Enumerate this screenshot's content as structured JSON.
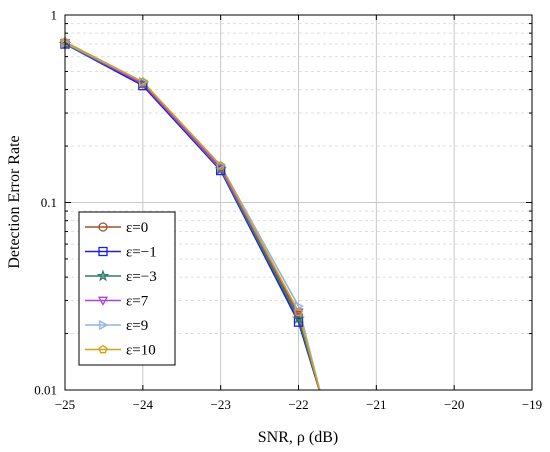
{
  "chart_data": {
    "type": "line",
    "title": "",
    "xlabel": "SNR, ρ (dB)",
    "ylabel": "Detection Error Rate",
    "xlim": [
      -25,
      -19
    ],
    "ylim": [
      0.01,
      1
    ],
    "yscale": "log",
    "grid": true,
    "legend_position": "bottom-left",
    "x_ticks": [
      -25,
      -24,
      -23,
      -22,
      -21,
      -20,
      -19
    ],
    "x_tick_labels": [
      "−25",
      "−24",
      "−23",
      "−22",
      "−21",
      "−20",
      "−19"
    ],
    "y_ticks": [
      0.01,
      0.1,
      1
    ],
    "y_tick_labels": [
      "0.01",
      "0.1",
      "1"
    ],
    "x": [
      -25,
      -24,
      -23,
      -22,
      -21.7
    ],
    "series": [
      {
        "name": "ε=0",
        "color": "#a0522d",
        "marker": "circle",
        "values": [
          0.71,
          0.43,
          0.155,
          0.025,
          0.009
        ]
      },
      {
        "name": "ε=−1",
        "color": "#1f1fd6",
        "marker": "square",
        "values": [
          0.7,
          0.42,
          0.148,
          0.023,
          0.009
        ]
      },
      {
        "name": "ε=−3",
        "color": "#2e7d6b",
        "marker": "star",
        "values": [
          0.7,
          0.43,
          0.15,
          0.024,
          0.009
        ]
      },
      {
        "name": "ε=7",
        "color": "#b040d8",
        "marker": "triangle-down",
        "values": [
          0.71,
          0.43,
          0.152,
          0.026,
          0.009
        ]
      },
      {
        "name": "ε=9",
        "color": "#8fb4e0",
        "marker": "triangle-right",
        "values": [
          0.71,
          0.44,
          0.158,
          0.028,
          0.009
        ]
      },
      {
        "name": "ε=10",
        "color": "#d4a017",
        "marker": "pentagon",
        "values": [
          0.72,
          0.44,
          0.157,
          0.026,
          0.009
        ]
      }
    ]
  }
}
